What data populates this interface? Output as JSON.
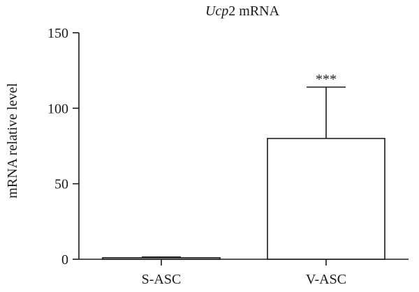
{
  "chart_data": {
    "type": "bar",
    "title_italic": "Ucp",
    "title_rest": "2 mRNA",
    "xlabel": "",
    "ylabel": "mRNA relative level",
    "categories": [
      "S-ASC",
      "V-ASC"
    ],
    "values": [
      1,
      80
    ],
    "error_upper": [
      0.5,
      34
    ],
    "annotations": [
      "",
      "***"
    ],
    "ylim": [
      0,
      150
    ],
    "yticks": [
      0,
      50,
      100,
      150
    ],
    "grid": false,
    "legend": "none",
    "bar_fill": "#ffffff",
    "bar_stroke": "#1a1a1a"
  }
}
